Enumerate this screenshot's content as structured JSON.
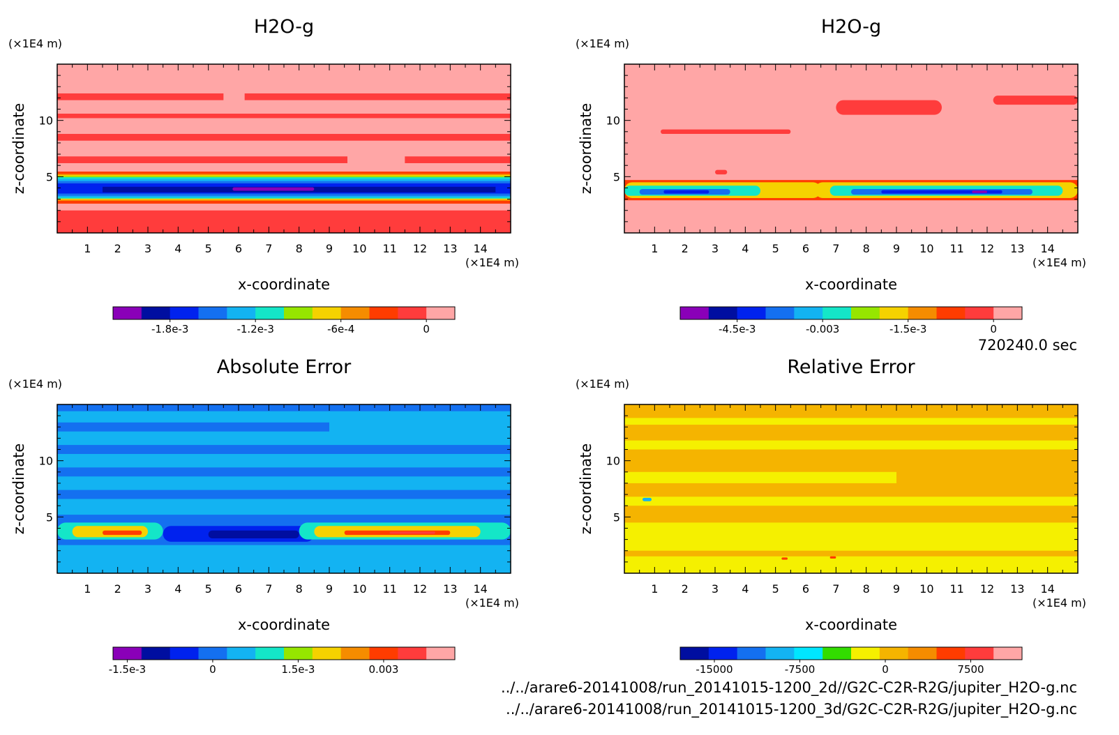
{
  "figure": {
    "time_label": "720240.0 sec",
    "footer_lines": [
      "../../arare6-20141008/run_20141015-1200_2d//G2C-C2R-R2G/jupiter_H2O-g.nc",
      "../../arare6-20141008/run_20141015-1200_3d/G2C-C2R-R2G/jupiter_H2O-g.nc"
    ]
  },
  "chart_data": [
    {
      "type": "heatmap",
      "title": "H2O-g",
      "xlabel": "x-coordinate",
      "ylabel": "z-coordinate",
      "x_unit": "(×1E4 m)",
      "z_unit": "(×1E4 m)",
      "xlim": [
        0,
        15
      ],
      "zlim": [
        0,
        15
      ],
      "x_ticks": [
        1,
        2,
        3,
        4,
        5,
        6,
        7,
        8,
        9,
        10,
        11,
        12,
        13,
        14
      ],
      "z_ticks": [
        5,
        10
      ],
      "colorbar": {
        "colors": [
          "#8a00b8",
          "#000ea0",
          "#0022ee",
          "#1470f0",
          "#13b3f2",
          "#14e6c8",
          "#96e600",
          "#f5d200",
          "#f58c00",
          "#ff3c00",
          "#ff3c3c",
          "#ffa6a6"
        ],
        "tick_values": [
          -0.0018,
          -0.0012,
          -0.0006,
          0
        ],
        "tick_labels": [
          "-1.8e-3",
          "-1.2e-3",
          "-6e-4",
          "0"
        ],
        "range": [
          -0.0022,
          0.0002
        ]
      }
    },
    {
      "type": "heatmap",
      "title": "H2O-g",
      "xlabel": "x-coordinate",
      "ylabel": "z-coordinate",
      "x_unit": "(×1E4 m)",
      "z_unit": "(×1E4 m)",
      "xlim": [
        0,
        15
      ],
      "zlim": [
        0,
        15
      ],
      "x_ticks": [
        1,
        2,
        3,
        4,
        5,
        6,
        7,
        8,
        9,
        10,
        11,
        12,
        13,
        14
      ],
      "z_ticks": [
        5,
        10
      ],
      "colorbar": {
        "colors": [
          "#8a00b8",
          "#000ea0",
          "#0022ee",
          "#1470f0",
          "#13b3f2",
          "#14e6c8",
          "#96e600",
          "#f5d200",
          "#f58c00",
          "#ff3c00",
          "#ff3c3c",
          "#ffa6a6"
        ],
        "tick_values": [
          -0.0045,
          -0.003,
          -0.0015,
          0
        ],
        "tick_labels": [
          "-4.5e-3",
          "-0.003",
          "-1.5e-3",
          "0"
        ],
        "range": [
          -0.0055,
          0.0005
        ]
      }
    },
    {
      "type": "heatmap",
      "title": "Absolute Error",
      "xlabel": "x-coordinate",
      "ylabel": "z-coordinate",
      "x_unit": "(×1E4 m)",
      "z_unit": "(×1E4 m)",
      "xlim": [
        0,
        15
      ],
      "zlim": [
        0,
        15
      ],
      "x_ticks": [
        1,
        2,
        3,
        4,
        5,
        6,
        7,
        8,
        9,
        10,
        11,
        12,
        13,
        14
      ],
      "z_ticks": [
        5,
        10
      ],
      "colorbar": {
        "colors": [
          "#8a00b8",
          "#000ea0",
          "#0022ee",
          "#1470f0",
          "#13b3f2",
          "#14e6c8",
          "#96e600",
          "#f5d200",
          "#f58c00",
          "#ff3c00",
          "#ff3c3c",
          "#ffa6a6"
        ],
        "tick_values": [
          -0.0015,
          0,
          0.0015,
          0.003
        ],
        "tick_labels": [
          "-1.5e-3",
          "0",
          "1.5e-3",
          "0.003"
        ],
        "range": [
          -0.00175,
          0.00425
        ]
      }
    },
    {
      "type": "heatmap",
      "title": "Relative Error",
      "xlabel": "x-coordinate",
      "ylabel": "z-coordinate",
      "x_unit": "(×1E4 m)",
      "z_unit": "(×1E4 m)",
      "xlim": [
        0,
        15
      ],
      "zlim": [
        0,
        15
      ],
      "x_ticks": [
        1,
        2,
        3,
        4,
        5,
        6,
        7,
        8,
        9,
        10,
        11,
        12,
        13,
        14
      ],
      "z_ticks": [
        5,
        10
      ],
      "colorbar": {
        "colors": [
          "#000ea0",
          "#0022ee",
          "#1470f0",
          "#13b3f2",
          "#00e6ff",
          "#32dc00",
          "#f5f000",
          "#f5b400",
          "#f58c00",
          "#ff3c00",
          "#ff3c3c",
          "#ffa6a6"
        ],
        "tick_values": [
          -15000,
          -7500,
          0,
          7500
        ],
        "tick_labels": [
          "-15000",
          "-7500",
          "0",
          "7500"
        ],
        "range": [
          -18000,
          12000
        ]
      }
    }
  ]
}
